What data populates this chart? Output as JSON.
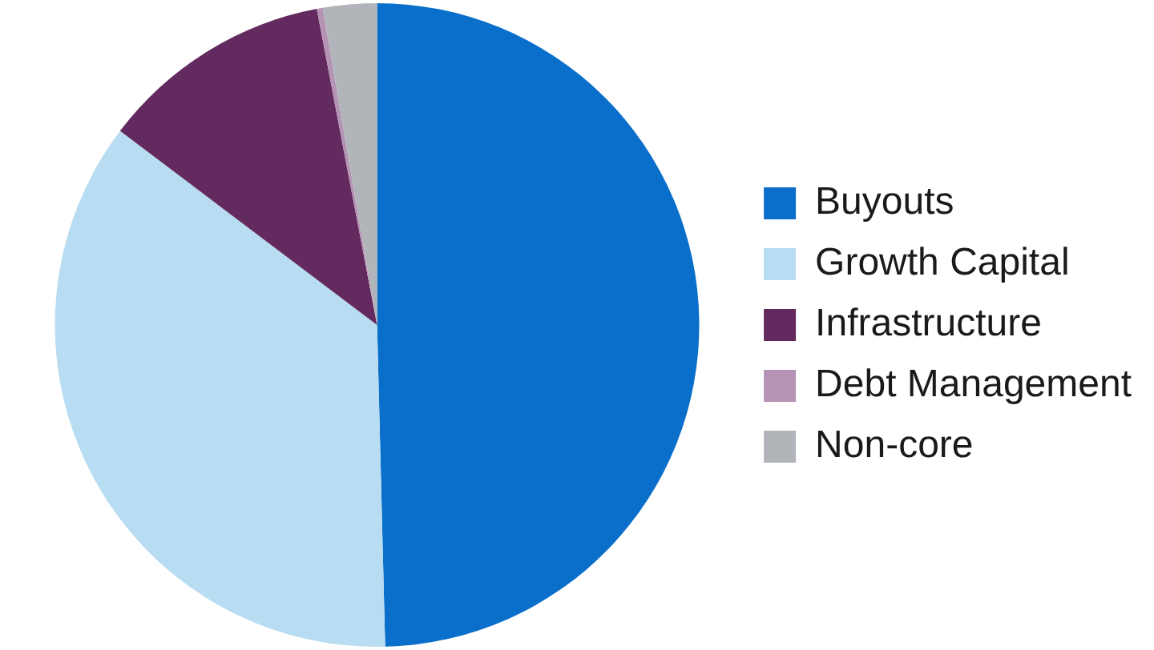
{
  "chart_data": {
    "type": "pie",
    "categories": [
      "Buyouts",
      "Growth Capital",
      "Infrastructure",
      "Debt Management",
      "Non-core"
    ],
    "values": [
      49.6,
      35.7,
      11.7,
      0.3,
      2.7
    ],
    "colors": [
      "#0a6fca",
      "#b8dcf1",
      "#622a5e",
      "#b493b4",
      "#b1b5b9"
    ],
    "legend": "right"
  }
}
